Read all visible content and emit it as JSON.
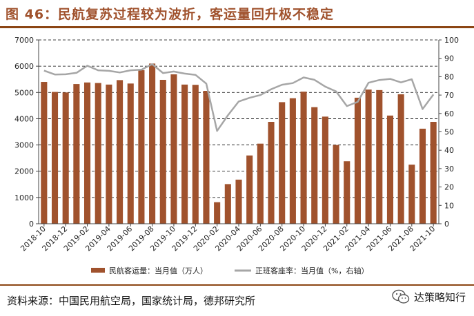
{
  "header": {
    "title": "图 46：民航复苏过程较为波折，客运量回升极不稳定"
  },
  "footer": {
    "source": "资料来源：中国民用航空局，国家统计局，德邦研究所",
    "brand": "达策略知行",
    "brand_icon": "wechat-icon"
  },
  "chart_data": {
    "type": "bar",
    "x": [
      "2018-10",
      "2018-11",
      "2018-12",
      "2019-01",
      "2019-02",
      "2019-03",
      "2019-04",
      "2019-05",
      "2019-06",
      "2019-07",
      "2019-08",
      "2019-09",
      "2019-10",
      "2019-11",
      "2019-12",
      "2020-01",
      "2020-02",
      "2020-03",
      "2020-04",
      "2020-05",
      "2020-06",
      "2020-07",
      "2020-08",
      "2020-09",
      "2020-10",
      "2020-11",
      "2020-12",
      "2021-01",
      "2021-02",
      "2021-03",
      "2021-04",
      "2021-05",
      "2021-06",
      "2021-07",
      "2021-08",
      "2021-09",
      "2021-10"
    ],
    "x_tick_labels": [
      "2018-10",
      "2018-12",
      "2019-02",
      "2019-04",
      "2019-06",
      "2019-08",
      "2019-10",
      "2019-12",
      "2020-02",
      "2020-04",
      "2020-06",
      "2020-08",
      "2020-10",
      "2020-12",
      "2021-02",
      "2021-04",
      "2021-06",
      "2021-08",
      "2021-10"
    ],
    "series": [
      {
        "name": "民航客运量：当月值（万人）",
        "type": "bar",
        "axis": "left",
        "color": "#a0522d",
        "values": [
          5400,
          5020,
          5000,
          5320,
          5380,
          5360,
          5300,
          5470,
          5340,
          5850,
          6100,
          5480,
          5690,
          5300,
          5290,
          5060,
          820,
          1510,
          1680,
          2600,
          3050,
          3880,
          4630,
          4780,
          5030,
          4440,
          4080,
          3000,
          2380,
          4800,
          5110,
          5090,
          4120,
          4930,
          2250,
          3620,
          3880
        ]
      },
      {
        "name": "正班客座率：当月值（%，右轴）",
        "type": "line",
        "axis": "right",
        "color": "#a6a6a6",
        "values": [
          83.3,
          81.2,
          81.3,
          82.1,
          86.0,
          83.5,
          83.2,
          82.3,
          83.5,
          83.8,
          86.8,
          82.0,
          82.8,
          81.7,
          81.0,
          76.2,
          50.5,
          59.0,
          66.5,
          68.5,
          70.0,
          73.2,
          75.6,
          76.5,
          79.6,
          78.3,
          74.6,
          72.0,
          64.0,
          66.3,
          76.7,
          78.2,
          78.8,
          76.9,
          78.6,
          62.4,
          70.3
        ]
      }
    ],
    "y_left": {
      "min": 0,
      "max": 7000,
      "step": 1000
    },
    "y_right": {
      "min": 0,
      "max": 100,
      "step": 10
    },
    "grid": "horizontal dashed",
    "legend_position": "bottom"
  }
}
